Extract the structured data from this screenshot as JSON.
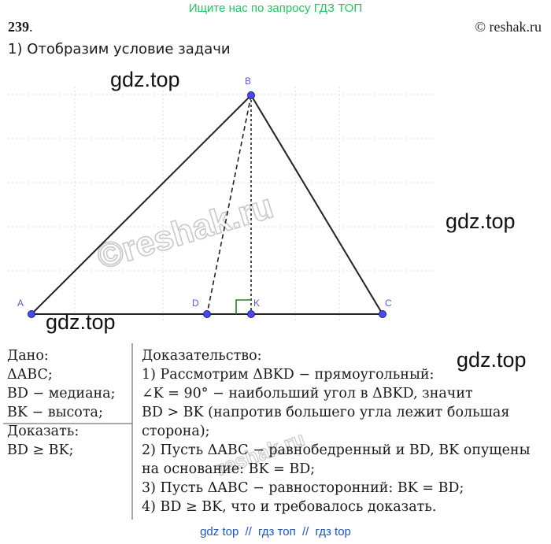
{
  "header": {
    "banner": "Ищите нас по запросу ГДЗ ТОП",
    "problem_number": "239",
    "problem_number_dot": ".",
    "site": "© reshak.ru",
    "step1": "1) Отобразим условие задачи"
  },
  "watermarks": {
    "gdz1": "gdz.top",
    "gdz2": "gdz.top",
    "gdz3": "gdz.top",
    "gdz4": "gdz.top",
    "stamp_big": "©reshak.ru",
    "stamp_small": "reshak.ru"
  },
  "figure": {
    "points": {
      "A": "A",
      "B": "B",
      "C": "C",
      "D": "D",
      "K": "K"
    },
    "colors": {
      "lines": "#222222",
      "points": "#4a4ae6",
      "right_angle": "#1a8a1a",
      "grid": "#dcdcdc"
    }
  },
  "given": {
    "title": "Дано:",
    "line1": "ΔABC;",
    "line2": "BD − медиана;",
    "line3": "BK − высота;",
    "prove_title": "Доказать:",
    "prove": "BD ≥ BK;"
  },
  "proof": {
    "title": "Доказательство:",
    "l1": "1) Рассмотрим ΔBKD − прямоугольный:",
    "l2": "∠K = 90° − наибольший угол в ΔBKD, значит",
    "l3": "BD > BK (напротив большего угла лежит большая",
    "l4": "сторона);",
    "l5": "2) Пусть ΔABC − равнобедренный и BD, BK опущены",
    "l6": "на основание: BK = BD;",
    "l7": "3) Пусть ΔABC − равносторонний: BK = BD;",
    "l8": "4) BD ≥ BK, что и требовалось доказать."
  },
  "footer": {
    "link1": "gdz top",
    "sep1": "//",
    "link2": "гдз топ",
    "sep2": "//",
    "link3": "гдз top"
  }
}
